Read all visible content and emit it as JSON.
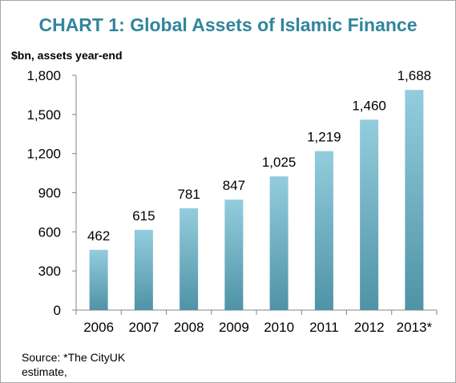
{
  "chart_data": {
    "type": "bar",
    "title": "CHART 1: Global Assets of Islamic Finance",
    "ylabel": "$bn, assets year-end",
    "xlabel": "",
    "categories": [
      "2006",
      "2007",
      "2008",
      "2009",
      "2010",
      "2011",
      "2012",
      "2013*"
    ],
    "values": [
      462,
      615,
      781,
      847,
      1025,
      1219,
      1460,
      1688
    ],
    "data_labels": [
      "462",
      "615",
      "781",
      "847",
      "1,025",
      "1,219",
      "1,460",
      "1,688"
    ],
    "ylim": [
      0,
      1800
    ],
    "yticks": [
      0,
      300,
      600,
      900,
      1200,
      1500,
      1800
    ],
    "ytick_labels": [
      "0",
      "300",
      "600",
      "900",
      "1,200",
      "1,500",
      "1,800"
    ],
    "grid": false,
    "legend": "none",
    "bar_color_top": "#93cddd",
    "bar_color_bottom": "#4f93a6",
    "title_color": "#31859c"
  },
  "footer": {
    "source_line1": "Source: *The CityUK",
    "source_line2": "estimate,"
  }
}
